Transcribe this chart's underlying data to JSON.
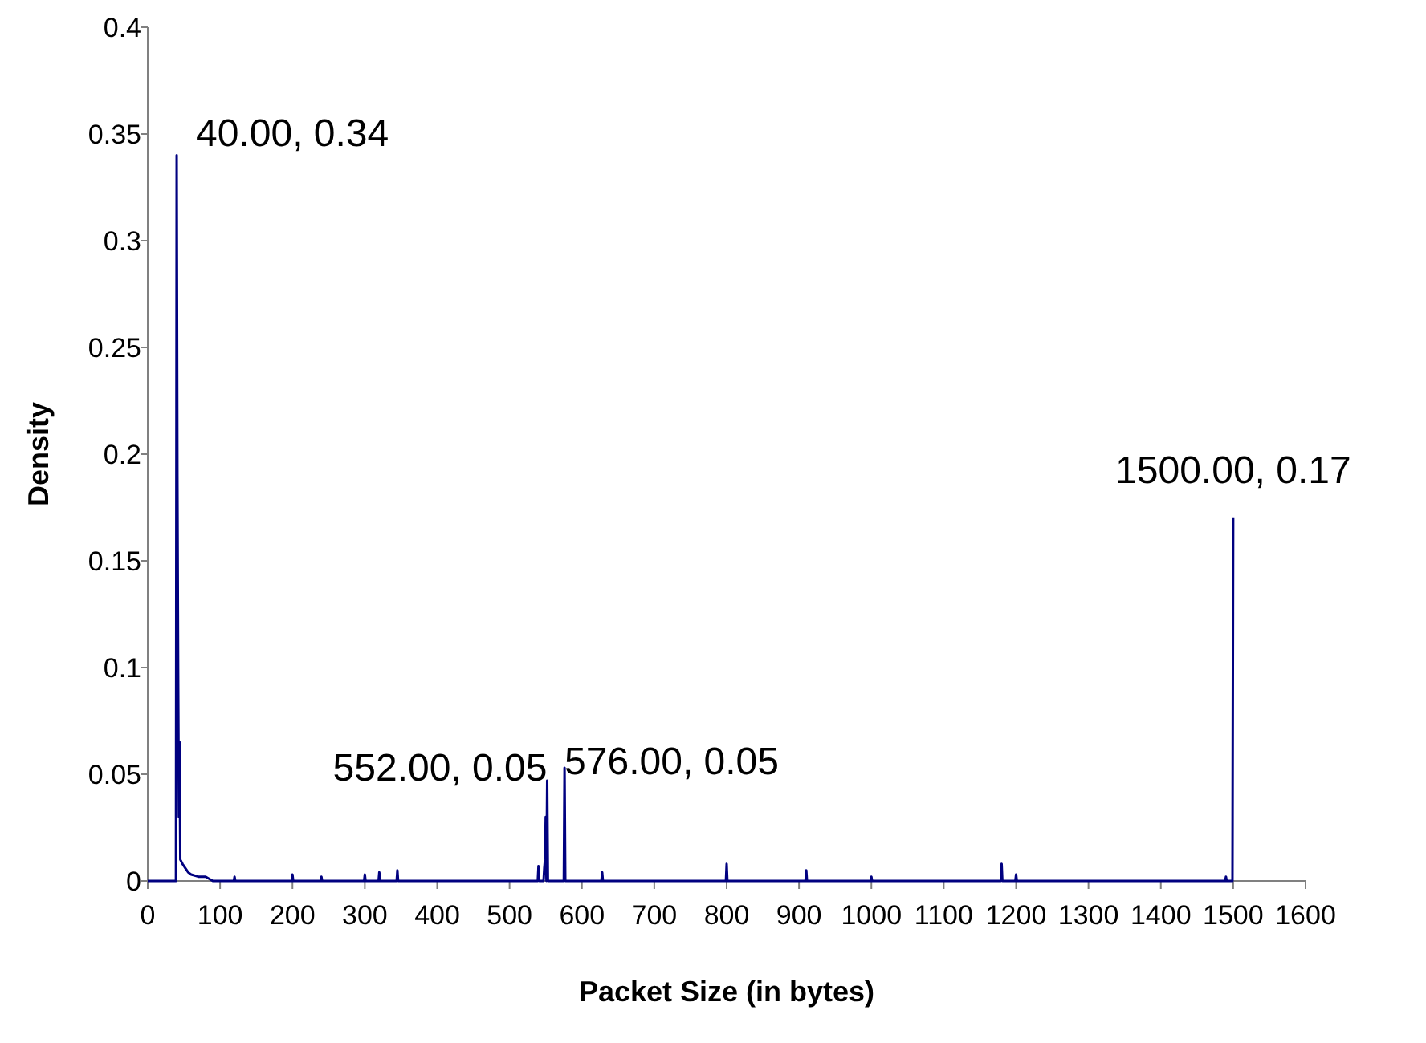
{
  "chart_data": {
    "type": "line",
    "xlabel": "Packet Size (in bytes)",
    "ylabel": "Density",
    "series": [
      {
        "color": "#000080",
        "x": [
          0,
          39,
          40,
          41,
          42,
          43,
          44,
          45,
          48,
          52,
          56,
          60,
          70,
          80,
          90,
          119,
          120,
          121,
          199,
          200,
          201,
          239,
          240,
          241,
          299,
          300,
          301,
          319,
          320,
          321,
          344,
          345,
          346,
          539,
          540,
          541,
          547,
          548,
          549,
          550,
          551,
          552,
          553,
          575,
          576,
          577,
          627,
          628,
          629,
          799,
          800,
          801,
          909,
          910,
          911,
          999,
          1000,
          1001,
          1179,
          1180,
          1181,
          1199,
          1200,
          1201,
          1489,
          1490,
          1491,
          1499,
          1500
        ],
        "values": [
          0,
          0,
          0.34,
          0.19,
          0.1,
          0.03,
          0.065,
          0.01,
          0.008,
          0.006,
          0.004,
          0.003,
          0.002,
          0.002,
          0,
          0,
          0.002,
          0,
          0,
          0.003,
          0,
          0,
          0.002,
          0,
          0,
          0.003,
          0,
          0,
          0.004,
          0,
          0,
          0.005,
          0,
          0,
          0.007,
          0,
          0,
          0.006,
          0.01,
          0.03,
          0,
          0.047,
          0,
          0,
          0.053,
          0,
          0,
          0.004,
          0,
          0,
          0.008,
          0,
          0,
          0.005,
          0,
          0,
          0.002,
          0,
          0,
          0.008,
          0,
          0,
          0.003,
          0,
          0,
          0.002,
          0,
          0,
          0.17
        ]
      }
    ],
    "xlim": [
      0,
      1600
    ],
    "xticks": [
      0,
      100,
      200,
      300,
      400,
      500,
      600,
      700,
      800,
      900,
      1000,
      1100,
      1200,
      1300,
      1400,
      1500,
      1600
    ],
    "ylim": [
      0,
      0.4
    ],
    "yticks": [
      0,
      0.05,
      0.1,
      0.15,
      0.2,
      0.25,
      0.3,
      0.35,
      0.4
    ],
    "grid": false,
    "annotations": [
      {
        "text": "40.00, 0.34",
        "x": 40,
        "y": 0.34
      },
      {
        "text": "552.00, 0.05",
        "x": 552,
        "y": 0.05
      },
      {
        "text": "576.00, 0.05",
        "x": 576,
        "y": 0.05
      },
      {
        "text": "1500.00, 0.17",
        "x": 1500,
        "y": 0.17
      }
    ]
  }
}
